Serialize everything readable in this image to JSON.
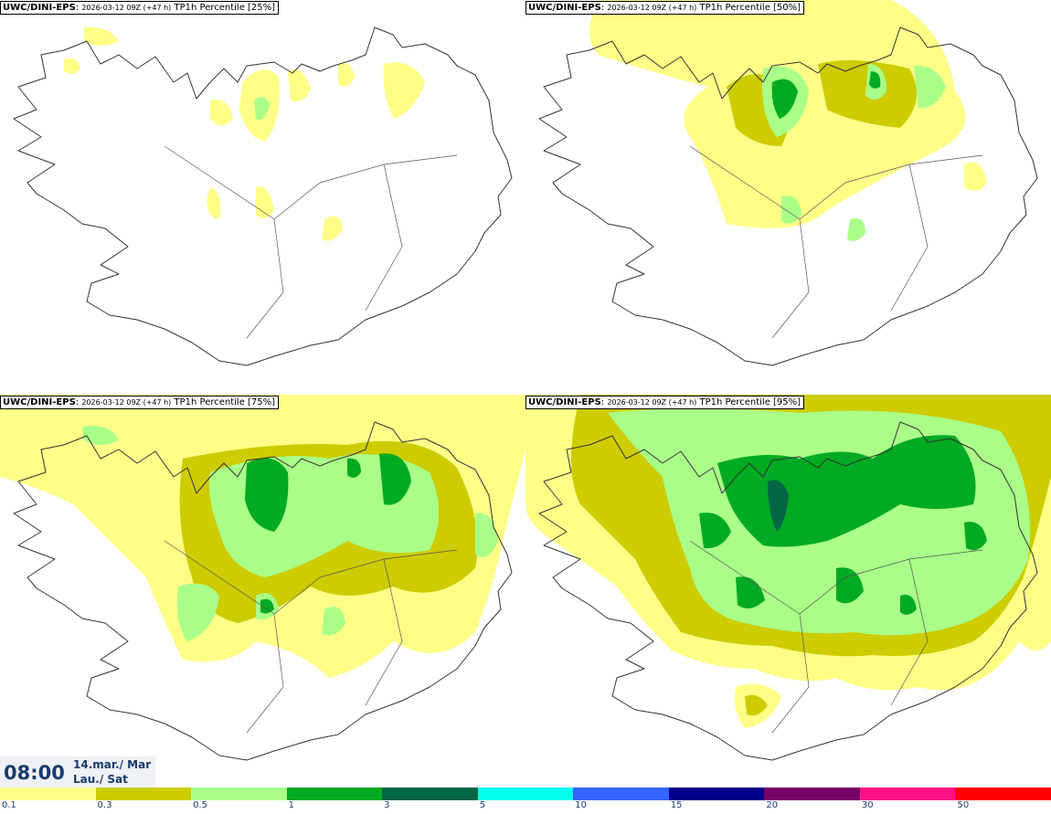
{
  "panels": [
    {
      "model": "UWC/DINI-EPS",
      "run": "2026-03-12 09Z (+47 h)",
      "field": "TP1h Percentile [25%]",
      "level": 0
    },
    {
      "model": "UWC/DINI-EPS",
      "run": "2026-03-12 09Z (+47 h)",
      "field": "TP1h Percentile [50%]",
      "level": 1
    },
    {
      "model": "UWC/DINI-EPS",
      "run": "2026-03-12 09Z (+47 h)",
      "field": "TP1h Percentile [75%]",
      "level": 2
    },
    {
      "model": "UWC/DINI-EPS",
      "run": "2026-03-12 09Z (+47 h)",
      "field": "TP1h Percentile [95%]",
      "level": 3
    }
  ],
  "valid_time": {
    "clock": "08:00",
    "date_line1": "14.mar./ Mar",
    "date_line2": "Lau./ Sat"
  },
  "legend": {
    "colors": [
      "#ffff88",
      "#cccc00",
      "#aaff88",
      "#00aa22",
      "#006644",
      "#00ffee",
      "#3366ff",
      "#000088",
      "#770066",
      "#ff1188",
      "#ff0000"
    ],
    "labels": [
      "0.1",
      "0.3",
      "0.5",
      "1",
      "3",
      "5",
      "10",
      "15",
      "20",
      "30",
      "50"
    ]
  }
}
